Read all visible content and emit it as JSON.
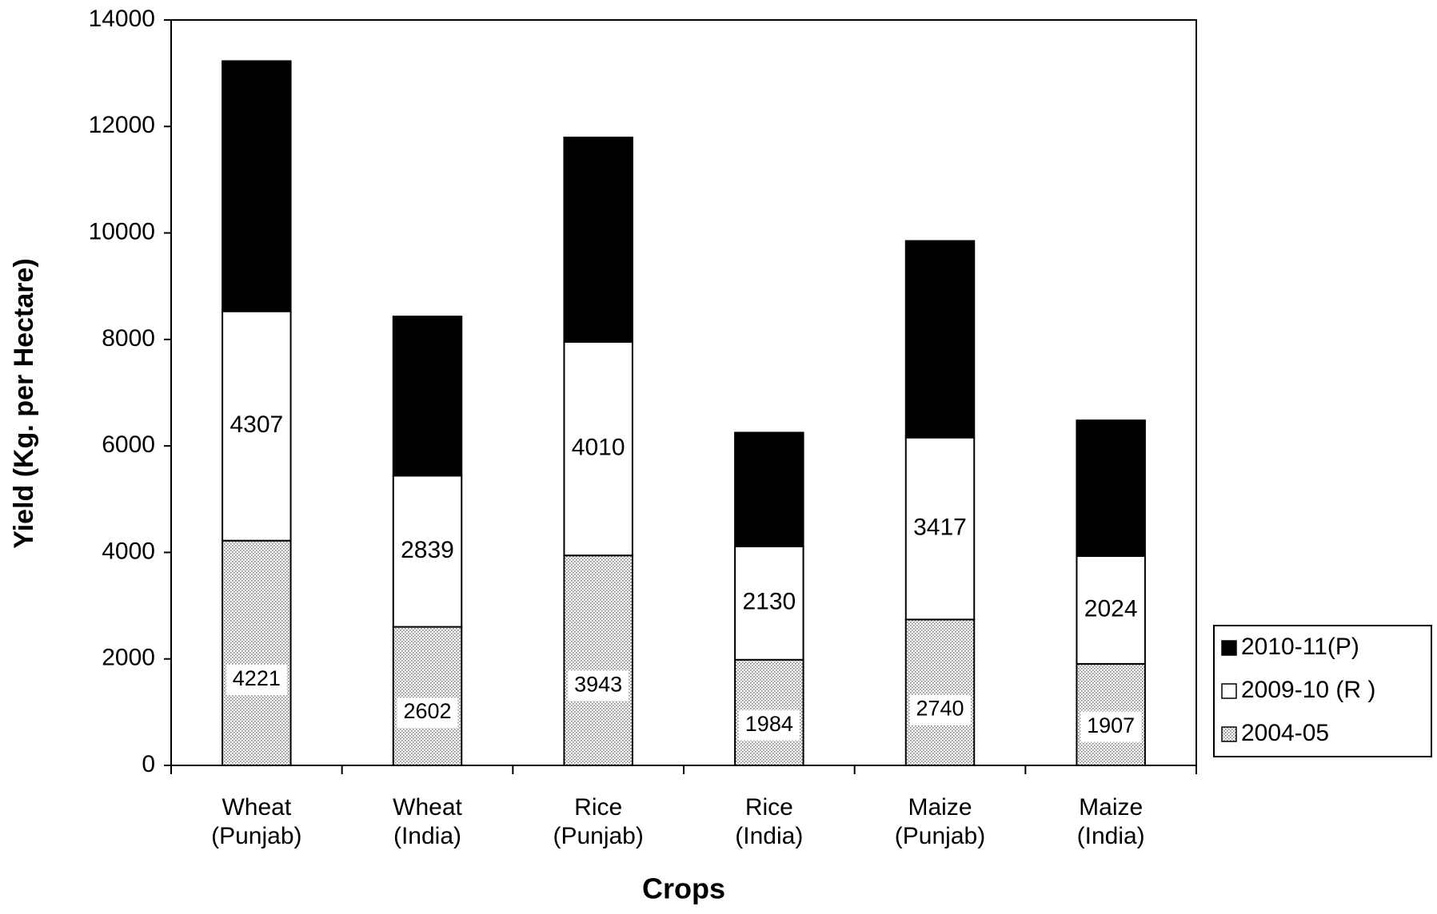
{
  "chart_data": {
    "type": "stacked_bar",
    "x_label": "Crops",
    "y_label": "Yield (Kg. per Hectare)",
    "categories": [
      "Wheat\n(Punjab)",
      "Wheat\n(India)",
      "Rice\n(Punjab)",
      "Rice\n(India)",
      "Maize\n(Punjab)",
      "Maize\n(India)"
    ],
    "series": [
      {
        "name": "2004-05",
        "color": "#7f7f7f",
        "pattern": "dots",
        "show_labels": true,
        "values": [
          4221,
          2602,
          3943,
          1984,
          2740,
          1907
        ]
      },
      {
        "name": "2009-10 (R )",
        "color": "#ffffff",
        "show_labels": true,
        "values": [
          4307,
          2839,
          4010,
          2130,
          3417,
          2024
        ]
      },
      {
        "name": "2010-11(P)",
        "color": "#000000",
        "show_labels": false,
        "values": [
          4700,
          2990,
          3840,
          2136,
          3693,
          2549
        ]
      }
    ],
    "ylim": [
      0,
      14000
    ],
    "yticks": [
      0,
      2000,
      4000,
      6000,
      8000,
      10000,
      12000,
      14000
    ],
    "legend": "right"
  }
}
